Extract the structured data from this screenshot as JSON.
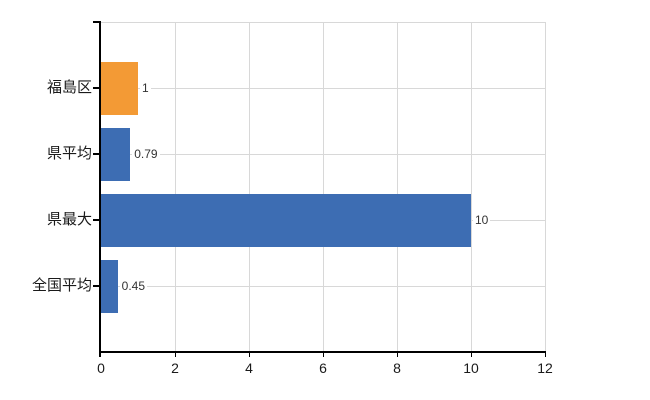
{
  "colors": {
    "highlight_bar": "#f39a35",
    "default_bar": "#3d6db3",
    "gridline": "#d8d8d8",
    "axis": "#000000",
    "category_text": "#1a1a1a",
    "value_text": "#333333",
    "background": "#ffffff"
  },
  "chart_data": {
    "type": "bar",
    "orientation": "horizontal",
    "title": "",
    "xlabel": "",
    "ylabel": "",
    "categories": [
      "福島区",
      "県平均",
      "県最大",
      "全国平均"
    ],
    "series": [
      {
        "name": "",
        "values": [
          1,
          0.79,
          10,
          0.45
        ]
      }
    ],
    "value_labels": [
      "1",
      "0.79",
      "10",
      "0.45"
    ],
    "bar_colors": [
      "#f39a35",
      "#3d6db3",
      "#3d6db3",
      "#3d6db3"
    ],
    "xlim": [
      0,
      12
    ],
    "x_tick_values": [
      0,
      2,
      4,
      6,
      8,
      10,
      12
    ],
    "x_tick_labels": [
      "0",
      "2",
      "4",
      "6",
      "8",
      "10",
      "12"
    ],
    "grid": "on",
    "legend": "none"
  }
}
